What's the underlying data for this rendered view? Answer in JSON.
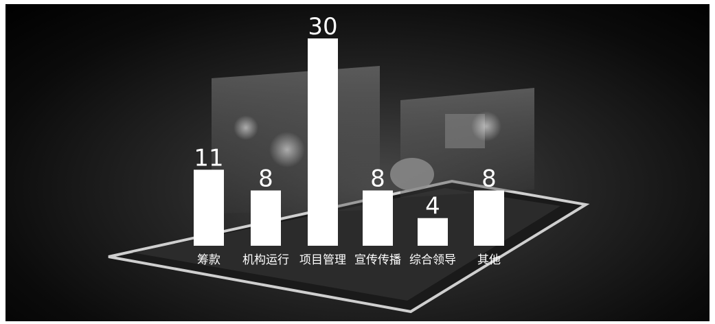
{
  "chart_data": {
    "type": "bar",
    "categories": [
      "筹款",
      "机构运行",
      "项目管理",
      "宣传传播",
      "综合领导",
      "其他"
    ],
    "values": [
      11,
      8,
      30,
      8,
      4,
      8
    ],
    "title": "",
    "xlabel": "",
    "ylabel": "",
    "ylim": [
      0,
      30
    ],
    "bar_color": "#ffffff",
    "label_color": "#ffffff"
  }
}
